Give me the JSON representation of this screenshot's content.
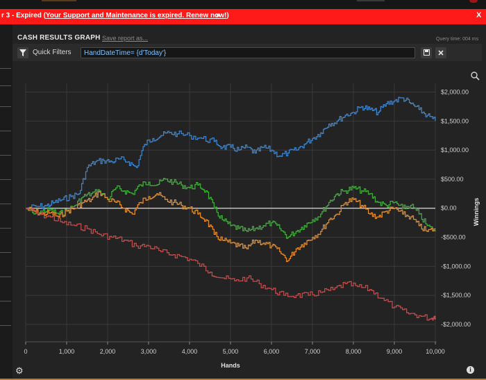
{
  "banner": {
    "prefix": "r 3 - Expired (",
    "link": "Your Support and Maintenance is expired.  Renew now!",
    "suffix": ")",
    "arrows": "»",
    "close": "X"
  },
  "report": {
    "title": "CASH RESULTS GRAPH",
    "save_link": "Save report as...",
    "query_time": "Query time: 004 ms"
  },
  "filters": {
    "label": "Quick Filters",
    "value": "HandDateTime= {d'Today'}"
  },
  "icons": {
    "funnel": "funnel-icon",
    "save": "floppy-disk-icon",
    "close": "close-icon",
    "zoom": "magnifier-icon",
    "settings": "gear-icon",
    "info": "info-icon"
  },
  "colors": {
    "banner": "#ff1a1a",
    "blue": "#3e82c9",
    "green": "#3faa3a",
    "orange": "#e08a2c",
    "red": "#c24b4b",
    "zero_line": "#dddddd"
  },
  "chart_data": {
    "type": "line",
    "xlabel": "Hands",
    "ylabel": "Winnings",
    "xlim": [
      0,
      10000
    ],
    "ylim": [
      -2300,
      2150
    ],
    "x_ticks": [
      "0",
      "1,000",
      "2,000",
      "3,000",
      "4,000",
      "5,000",
      "6,000",
      "7,000",
      "8,000",
      "9,000",
      "10,000"
    ],
    "y_ticks": [
      "$2,000.00",
      "$1,500.00",
      "$1,000.00",
      "$500.00",
      "$0.00",
      "-$500.00",
      "-$1,000.00",
      "-$1,500.00",
      "-$2,000.00"
    ],
    "grid": true,
    "series": [
      {
        "color": "blue",
        "x": [
          0,
          300,
          500,
          700,
          900,
          1100,
          1300,
          1500,
          1700,
          1900,
          2100,
          2300,
          2500,
          2700,
          2900,
          3100,
          3300,
          3500,
          3700,
          4000,
          4300,
          4600,
          4800,
          5000,
          5200,
          5400,
          5600,
          5800,
          6000,
          6200,
          6400,
          6600,
          6800,
          7000,
          7200,
          7400,
          7600,
          7800,
          8000,
          8200,
          8400,
          8600,
          8800,
          9000,
          9200,
          9400,
          9600,
          9800,
          10000
        ],
        "y": [
          0,
          30,
          40,
          100,
          150,
          200,
          250,
          700,
          800,
          820,
          800,
          850,
          800,
          700,
          1100,
          1200,
          1250,
          1300,
          1280,
          1250,
          1200,
          1150,
          1050,
          1050,
          1000,
          1050,
          950,
          1050,
          1000,
          900,
          950,
          1000,
          1100,
          1200,
          1300,
          1450,
          1500,
          1600,
          1650,
          1750,
          1700,
          1650,
          1800,
          1850,
          1900,
          1800,
          1700,
          1600,
          1500
        ]
      },
      {
        "color": "green",
        "x": [
          0,
          200,
          400,
          600,
          800,
          1000,
          1200,
          1400,
          1600,
          1800,
          2000,
          2200,
          2400,
          2600,
          2800,
          3000,
          3200,
          3400,
          3600,
          3800,
          4000,
          4200,
          4400,
          4600,
          4800,
          5000,
          5200,
          5400,
          5600,
          5800,
          6000,
          6200,
          6400,
          6600,
          6800,
          7000,
          7200,
          7400,
          7600,
          7800,
          8000,
          8200,
          8400,
          8600,
          8800,
          9000,
          9200,
          9400,
          9600,
          9800,
          10000
        ],
        "y": [
          0,
          -100,
          -50,
          -30,
          -100,
          -50,
          50,
          200,
          250,
          300,
          150,
          350,
          300,
          250,
          400,
          450,
          400,
          500,
          450,
          400,
          350,
          400,
          300,
          0,
          -200,
          -300,
          -350,
          -400,
          -350,
          -300,
          -250,
          -350,
          -500,
          -400,
          -300,
          -200,
          -100,
          100,
          250,
          300,
          350,
          300,
          250,
          100,
          50,
          100,
          0,
          50,
          -100,
          -300,
          -400
        ]
      },
      {
        "color": "orange",
        "x": [
          0,
          200,
          400,
          600,
          800,
          1000,
          1200,
          1400,
          1600,
          1800,
          2000,
          2200,
          2400,
          2600,
          2800,
          3000,
          3200,
          3400,
          3600,
          3800,
          4000,
          4200,
          4400,
          4600,
          4800,
          5000,
          5200,
          5400,
          5600,
          5800,
          6000,
          6200,
          6400,
          6600,
          6800,
          7000,
          7200,
          7400,
          7600,
          7800,
          8000,
          8200,
          8400,
          8600,
          8800,
          9000,
          9200,
          9400,
          9600,
          9800,
          10000
        ],
        "y": [
          0,
          -50,
          -100,
          -80,
          -150,
          -50,
          0,
          100,
          150,
          280,
          150,
          100,
          0,
          -100,
          100,
          200,
          250,
          150,
          100,
          50,
          0,
          -100,
          -200,
          -450,
          -550,
          -600,
          -650,
          -700,
          -550,
          -600,
          -650,
          -750,
          -900,
          -700,
          -600,
          -500,
          -400,
          -200,
          -100,
          100,
          150,
          50,
          -100,
          -150,
          -50,
          0,
          -100,
          -150,
          -300,
          -400,
          -350
        ]
      },
      {
        "color": "red",
        "x": [
          0,
          300,
          600,
          900,
          1200,
          1500,
          1800,
          2100,
          2400,
          2700,
          3000,
          3300,
          3600,
          3900,
          4200,
          4500,
          4800,
          5100,
          5400,
          5700,
          6000,
          6300,
          6600,
          6900,
          7200,
          7500,
          7800,
          8100,
          8400,
          8700,
          9000,
          9300,
          9600,
          9900,
          10000
        ],
        "y": [
          0,
          -100,
          -150,
          -250,
          -300,
          -350,
          -450,
          -500,
          -550,
          -650,
          -650,
          -750,
          -800,
          -850,
          -950,
          -1100,
          -1200,
          -1250,
          -1200,
          -1300,
          -1400,
          -1500,
          -1500,
          -1500,
          -1450,
          -1400,
          -1300,
          -1350,
          -1400,
          -1550,
          -1700,
          -1800,
          -1850,
          -1900,
          -1850
        ]
      }
    ]
  }
}
